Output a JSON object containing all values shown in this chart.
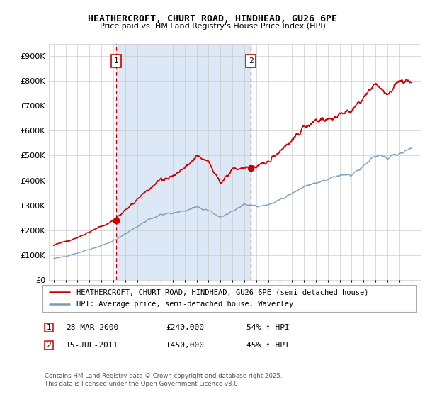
{
  "title": "HEATHERCROFT, CHURT ROAD, HINDHEAD, GU26 6PE",
  "subtitle": "Price paid vs. HM Land Registry's House Price Index (HPI)",
  "red_label": "HEATHERCROFT, CHURT ROAD, HINDHEAD, GU26 6PE (semi-detached house)",
  "blue_label": "HPI: Average price, semi-detached house, Waverley",
  "annotation1_date": "28-MAR-2000",
  "annotation1_price": 240000,
  "annotation1_price_str": "£240,000",
  "annotation1_pct": "54% ↑ HPI",
  "annotation2_date": "15-JUL-2011",
  "annotation2_price": 450000,
  "annotation2_price_str": "£450,000",
  "annotation2_pct": "45% ↑ HPI",
  "footer": "Contains HM Land Registry data © Crown copyright and database right 2025.\nThis data is licensed under the Open Government Licence v3.0.",
  "red_color": "#cc0000",
  "blue_color": "#7799bb",
  "shade_color": "#dce8f5",
  "grid_color": "#cccccc",
  "ylim_max": 950000,
  "yticks": [
    0,
    100000,
    200000,
    300000,
    400000,
    500000,
    600000,
    700000,
    800000,
    900000
  ],
  "xlim_start": 1994.6,
  "xlim_end": 2025.8,
  "ann1_x": 2000.24,
  "ann2_x": 2011.54,
  "ann1_y": 240000,
  "ann2_y": 450000,
  "background_color": "#ffffff"
}
